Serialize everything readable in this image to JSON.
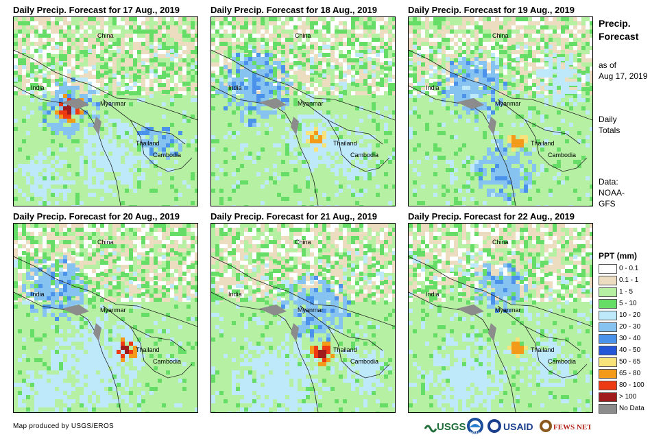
{
  "panels": [
    {
      "title": "Daily Precip. Forecast for 17 Aug., 2019"
    },
    {
      "title": "Daily Precip. Forecast for 18 Aug., 2019"
    },
    {
      "title": "Daily Precip. Forecast for 19 Aug., 2019"
    },
    {
      "title": "Daily Precip. Forecast for 20 Aug., 2019"
    },
    {
      "title": "Daily Precip. Forecast for 21 Aug., 2019"
    },
    {
      "title": "Daily Precip. Forecast for 22 Aug., 2019"
    }
  ],
  "map_labels": {
    "china": "China",
    "india": "India",
    "myanmar": "Myanmar",
    "thailand": "Thailand",
    "cambodia": "Cambodia"
  },
  "sidebar": {
    "title_line1": "Precip.",
    "title_line2": "Forecast",
    "asof_line1": "as of",
    "asof_line2": "Aug 17, 2019",
    "totals_line1": "Daily",
    "totals_line2": "Totals",
    "data_line1": "Data:",
    "data_line2": "NOAA-",
    "data_line3": "GFS"
  },
  "legend": {
    "title": "PPT (mm)",
    "items": [
      {
        "label": "0 - 0.1",
        "color": "#ffffff"
      },
      {
        "label": "0.1 - 1",
        "color": "#ecdcc0"
      },
      {
        "label": "1 - 5",
        "color": "#b5f0a3"
      },
      {
        "label": "5 - 10",
        "color": "#66dd66"
      },
      {
        "label": "10 - 20",
        "color": "#bde9fa"
      },
      {
        "label": "20 - 30",
        "color": "#86c3f0"
      },
      {
        "label": "30 - 40",
        "color": "#4a92ea"
      },
      {
        "label": "40 - 50",
        "color": "#2457d8"
      },
      {
        "label": "50 - 65",
        "color": "#f8e27a"
      },
      {
        "label": "65 - 80",
        "color": "#f39a1a"
      },
      {
        "label": "80 - 100",
        "color": "#ee3a12"
      },
      {
        "label": "> 100",
        "color": "#a01b1b"
      },
      {
        "label": "No Data",
        "color": "#8c8c8c"
      }
    ]
  },
  "credit": "Map produced by USGS/EROS",
  "logos": {
    "usgs": "USGS",
    "noaa": "NOAA",
    "usaid": "USAID",
    "fewsnet": "FEWS NET"
  }
}
